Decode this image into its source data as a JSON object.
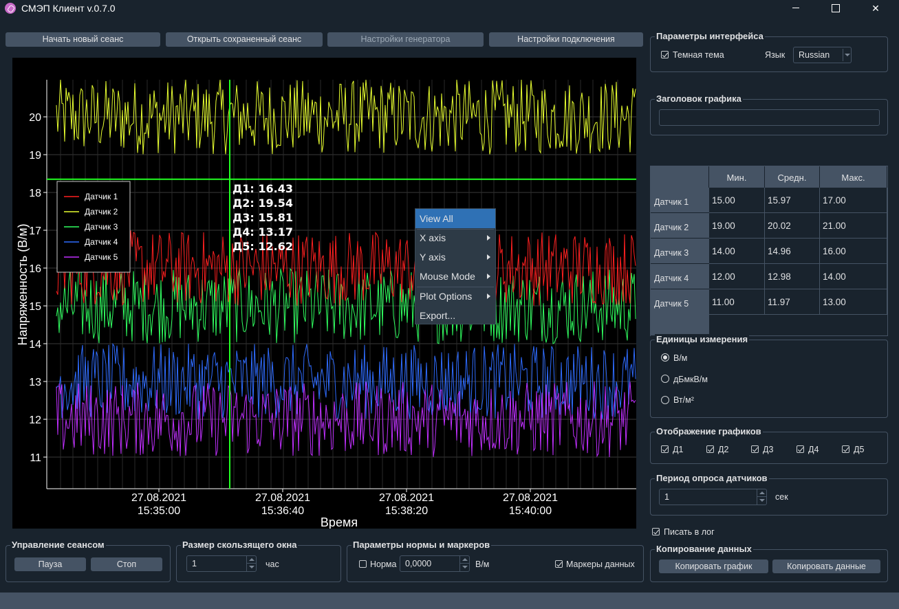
{
  "window": {
    "title": "СМЭП Клиент v.0.7.0",
    "close_glyph": "✕"
  },
  "toolbar": {
    "new_session": "Начать новый сеанс",
    "open_session": "Открыть сохраненный сеанс",
    "generator_settings": "Настройки генератора",
    "connection_settings": "Настройки подключения"
  },
  "plot": {
    "ylabel": "Напряженность (В/м)",
    "xlabel": "Время",
    "yticks": [
      "20",
      "19",
      "18",
      "17",
      "16",
      "15",
      "14",
      "13",
      "12",
      "11"
    ],
    "xticks": [
      {
        "date": "27.08.2021",
        "time": "15:35:00"
      },
      {
        "date": "27.08.2021",
        "time": "15:36:40"
      },
      {
        "date": "27.08.2021",
        "time": "15:38:20"
      },
      {
        "date": "27.08.2021",
        "time": "15:40:00"
      }
    ],
    "legend": [
      "Датчик 1",
      "Датчик 2",
      "Датчик 3",
      "Датчик 4",
      "Датчик 5"
    ],
    "readout": [
      "Д1: 16.43",
      "Д2: 19.54",
      "Д3: 15.81",
      "Д4: 13.17",
      "Д5: 12.62"
    ],
    "crosshair_y_value": 18.35,
    "series_colors": [
      "#ff2020",
      "#e8ff30",
      "#30ff60",
      "#2f6cff",
      "#c030ff"
    ],
    "crosshair_color": "#22ff22"
  },
  "context_menu": {
    "items": [
      "View All",
      "X axis",
      "Y axis",
      "Mouse Mode",
      "Plot Options",
      "Export..."
    ]
  },
  "interface_params": {
    "title": "Параметры интерфейса",
    "dark_theme": "Темная тема",
    "language_label": "Язык",
    "language_value": "Russian"
  },
  "chart_title_group": {
    "title": "Заголовок графика",
    "value": ""
  },
  "stats": {
    "headers": [
      "Мин.",
      "Средн.",
      "Макс."
    ],
    "rows": [
      {
        "name": "Датчик 1",
        "min": "15.00",
        "avg": "15.97",
        "max": "17.00"
      },
      {
        "name": "Датчик 2",
        "min": "19.00",
        "avg": "20.02",
        "max": "21.00"
      },
      {
        "name": "Датчик 3",
        "min": "14.00",
        "avg": "14.96",
        "max": "16.00"
      },
      {
        "name": "Датчик 4",
        "min": "12.00",
        "avg": "12.98",
        "max": "14.00"
      },
      {
        "name": "Датчик 5",
        "min": "11.00",
        "avg": "11.97",
        "max": "13.00"
      }
    ]
  },
  "units": {
    "title": "Единицы измерения",
    "options": [
      "В/м",
      "дБмкВ/м",
      "Вт/м²"
    ],
    "selected": 0
  },
  "display": {
    "title": "Отображение графиков",
    "items": [
      "Д1",
      "Д2",
      "Д3",
      "Д4",
      "Д5"
    ]
  },
  "poll": {
    "title": "Период опроса датчиков",
    "value": "1",
    "unit": "сек"
  },
  "log": {
    "label": "Писать в лог"
  },
  "copy": {
    "title": "Копирование данных",
    "copy_chart": "Копировать график",
    "copy_data": "Копировать данные"
  },
  "session": {
    "title": "Управление сеансом",
    "pause": "Пауза",
    "stop": "Стоп"
  },
  "window_size": {
    "title": "Размер скользящего окна",
    "value": "1",
    "unit": "час"
  },
  "norm": {
    "title": "Параметры нормы и маркеров",
    "norm_label": "Норма",
    "norm_value": "0,0000",
    "unit": "В/м",
    "markers_label": "Маркеры данных"
  }
}
